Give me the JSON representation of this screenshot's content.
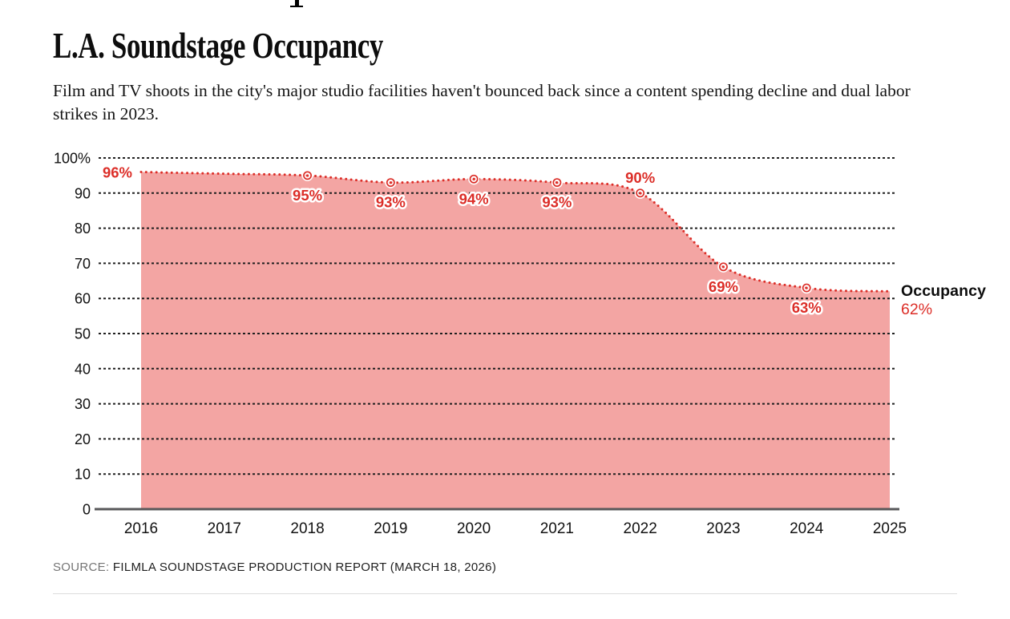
{
  "page": {
    "title": "L.A. Soundstage Occupancy",
    "subtitle": "Film and TV shoots in the city's major studio facilities haven't bounced back since a content spending decline and dual labor strikes in 2023.",
    "source_prefix": "SOURCE:",
    "source_text": "FILMLA SOUNDSTAGE PRODUCTION REPORT (MARCH 18, 2026)"
  },
  "annotation": {
    "series_label": "Occupancy",
    "end_value_label": "62%"
  },
  "colors": {
    "accent_red": "#dc2e28",
    "fill_pink": "#f3a5a3",
    "grid": "#1f1f1f",
    "axis": "#58585a",
    "text": "#111111",
    "label_halo": "#ffffff"
  },
  "chart_data": {
    "type": "area",
    "title": "L.A. Soundstage Occupancy",
    "xlabel": "",
    "ylabel": "",
    "series_name": "Occupancy",
    "ylim": [
      0,
      100
    ],
    "yticks": [
      0,
      10,
      20,
      30,
      40,
      50,
      60,
      70,
      80,
      90,
      100
    ],
    "ytick_labels": [
      "0",
      "10",
      "20",
      "30",
      "40",
      "50",
      "60",
      "70",
      "80",
      "90",
      "100%"
    ],
    "grid": "horizontal-dashed",
    "line_style": "dotted",
    "legend_position": "right-of-line-end",
    "points": [
      {
        "year": "2016",
        "value": 96,
        "label": "96%",
        "label_pos": "left",
        "marker": false
      },
      {
        "year": "2017",
        "value": 95.5,
        "label": "",
        "label_pos": "",
        "marker": false,
        "estimated": true
      },
      {
        "year": "2018",
        "value": 95,
        "label": "95%",
        "label_pos": "below",
        "marker": true
      },
      {
        "year": "2019",
        "value": 93,
        "label": "93%",
        "label_pos": "below",
        "marker": true
      },
      {
        "year": "2020",
        "value": 94,
        "label": "94%",
        "label_pos": "below",
        "marker": true
      },
      {
        "year": "2021",
        "value": 93,
        "label": "93%",
        "label_pos": "below",
        "marker": true
      },
      {
        "year": "2022",
        "value": 90,
        "label": "90%",
        "label_pos": "above",
        "marker": true
      },
      {
        "year": "2023",
        "value": 69,
        "label": "69%",
        "label_pos": "below",
        "marker": true
      },
      {
        "year": "2024",
        "value": 63,
        "label": "63%",
        "label_pos": "below",
        "marker": true
      },
      {
        "year": "2025",
        "value": 62,
        "label": "",
        "label_pos": "",
        "marker": false
      }
    ]
  }
}
